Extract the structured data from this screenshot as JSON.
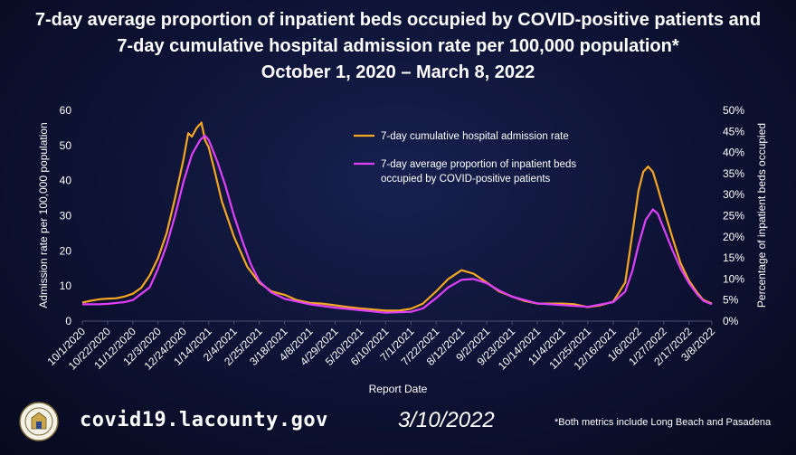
{
  "header": {
    "title_line1": "7-day average proportion of inpatient beds occupied by COVID-positive patients and",
    "title_line2": "7-day cumulative hospital admission rate per 100,000 population*",
    "title_line3": "October 1, 2020 – March 8, 2022"
  },
  "footer": {
    "url": "covid19.lacounty.gov",
    "date": "3/10/2022",
    "note": "*Both metrics include Long Beach and Pasadena",
    "seal_icon": "county-seal-icon"
  },
  "colors": {
    "admission": "#f5a623",
    "occupancy": "#e040fb",
    "background": "#0d1233"
  },
  "chart_data": {
    "type": "line",
    "xlabel": "Report Date",
    "ylabel": "Admission rate per 100,000 population",
    "y2label": "Percentage of inpatient beds occupied",
    "ylim": [
      0,
      60
    ],
    "yticks": [
      "0",
      "10",
      "20",
      "30",
      "40",
      "50",
      "60"
    ],
    "y2lim": [
      0,
      50
    ],
    "y2ticks": [
      "0%",
      "5%",
      "10%",
      "15%",
      "20%",
      "25%",
      "30%",
      "35%",
      "40%",
      "45%",
      "50%"
    ],
    "x_ticks": [
      "10/1/2020",
      "10/22/2020",
      "11/12/2020",
      "12/3/2020",
      "12/24/2020",
      "1/14/2021",
      "2/4/2021",
      "2/25/2021",
      "3/18/2021",
      "4/8/2021",
      "4/29/2021",
      "5/20/2021",
      "6/10/2021",
      "7/1/2021",
      "7/22/2021",
      "8/12/2021",
      "9/2/2021",
      "9/23/2021",
      "10/14/2021",
      "11/4/2021",
      "11/25/2021",
      "12/16/2021",
      "1/6/2022",
      "1/27/2022",
      "2/17/2022",
      "3/8/2022"
    ],
    "x_range": [
      "10/1/2020",
      "3/8/2022"
    ],
    "grid": false,
    "legend_position": "top-center",
    "series": [
      {
        "name": "7-day cumulative hospital admission rate",
        "axis": "left",
        "points": [
          [
            "10/1/2020",
            5.3
          ],
          [
            "10/8/2020",
            5.8
          ],
          [
            "10/15/2020",
            6.2
          ],
          [
            "10/22/2020",
            6.4
          ],
          [
            "10/29/2020",
            6.5
          ],
          [
            "11/5/2020",
            7.0
          ],
          [
            "11/12/2020",
            7.8
          ],
          [
            "11/19/2020",
            9.5
          ],
          [
            "11/26/2020",
            13.0
          ],
          [
            "12/3/2020",
            18.0
          ],
          [
            "12/10/2020",
            25.0
          ],
          [
            "12/17/2020",
            35.0
          ],
          [
            "12/24/2020",
            46.0
          ],
          [
            "12/28/2020",
            53.5
          ],
          [
            "12/31/2020",
            52.5
          ],
          [
            "1/4/2021",
            55.0
          ],
          [
            "1/8/2021",
            56.5
          ],
          [
            "1/11/2021",
            51.5
          ],
          [
            "1/14/2021",
            49.5
          ],
          [
            "1/18/2021",
            44.0
          ],
          [
            "1/25/2021",
            34.0
          ],
          [
            "2/4/2021",
            24.0
          ],
          [
            "2/15/2021",
            15.5
          ],
          [
            "2/25/2021",
            11.0
          ],
          [
            "3/7/2021",
            8.5
          ],
          [
            "3/18/2021",
            7.5
          ],
          [
            "3/28/2021",
            6.0
          ],
          [
            "4/8/2021",
            5.2
          ],
          [
            "4/18/2021",
            5.0
          ],
          [
            "4/29/2021",
            4.5
          ],
          [
            "5/10/2021",
            4.0
          ],
          [
            "5/20/2021",
            3.6
          ],
          [
            "5/31/2021",
            3.3
          ],
          [
            "6/10/2021",
            3.0
          ],
          [
            "6/21/2021",
            3.0
          ],
          [
            "7/1/2021",
            3.5
          ],
          [
            "7/11/2021",
            5.0
          ],
          [
            "7/22/2021",
            8.5
          ],
          [
            "8/1/2021",
            12.0
          ],
          [
            "8/12/2021",
            14.5
          ],
          [
            "8/22/2021",
            13.5
          ],
          [
            "9/2/2021",
            11.0
          ],
          [
            "9/12/2021",
            8.5
          ],
          [
            "9/23/2021",
            7.0
          ],
          [
            "10/3/2021",
            5.8
          ],
          [
            "10/14/2021",
            5.0
          ],
          [
            "10/24/2021",
            5.0
          ],
          [
            "11/4/2021",
            5.0
          ],
          [
            "11/14/2021",
            4.8
          ],
          [
            "11/25/2021",
            4.0
          ],
          [
            "12/5/2021",
            4.5
          ],
          [
            "12/16/2021",
            5.5
          ],
          [
            "12/26/2021",
            11.0
          ],
          [
            "1/1/2022",
            25.0
          ],
          [
            "1/6/2022",
            37.0
          ],
          [
            "1/10/2022",
            42.5
          ],
          [
            "1/14/2022",
            44.0
          ],
          [
            "1/18/2022",
            42.5
          ],
          [
            "1/22/2022",
            38.0
          ],
          [
            "1/27/2022",
            32.0
          ],
          [
            "2/3/2022",
            24.0
          ],
          [
            "2/10/2022",
            16.5
          ],
          [
            "2/17/2022",
            11.5
          ],
          [
            "2/24/2022",
            8.0
          ],
          [
            "3/1/2022",
            6.0
          ],
          [
            "3/8/2022",
            5.0
          ]
        ]
      },
      {
        "name": "7-day average proportion of inpatient beds occupied by COVID-positive patients",
        "axis": "right",
        "points": [
          [
            "10/1/2020",
            4.0
          ],
          [
            "10/15/2020",
            4.0
          ],
          [
            "10/22/2020",
            4.1
          ],
          [
            "11/5/2020",
            4.5
          ],
          [
            "11/12/2020",
            5.0
          ],
          [
            "11/26/2020",
            8.0
          ],
          [
            "12/3/2020",
            12.5
          ],
          [
            "12/10/2020",
            18.0
          ],
          [
            "12/17/2020",
            25.0
          ],
          [
            "12/24/2020",
            33.0
          ],
          [
            "12/31/2020",
            39.5
          ],
          [
            "1/7/2021",
            43.0
          ],
          [
            "1/11/2021",
            44.0
          ],
          [
            "1/14/2021",
            43.0
          ],
          [
            "1/21/2021",
            38.0
          ],
          [
            "1/28/2021",
            32.0
          ],
          [
            "2/4/2021",
            25.0
          ],
          [
            "2/11/2021",
            19.0
          ],
          [
            "2/18/2021",
            13.5
          ],
          [
            "2/25/2021",
            9.5
          ],
          [
            "3/7/2021",
            6.8
          ],
          [
            "3/18/2021",
            5.3
          ],
          [
            "4/8/2021",
            4.0
          ],
          [
            "4/29/2021",
            3.2
          ],
          [
            "5/20/2021",
            2.6
          ],
          [
            "6/10/2021",
            2.0
          ],
          [
            "7/1/2021",
            2.2
          ],
          [
            "7/11/2021",
            3.0
          ],
          [
            "7/22/2021",
            5.5
          ],
          [
            "8/1/2021",
            8.0
          ],
          [
            "8/12/2021",
            9.8
          ],
          [
            "8/22/2021",
            10.0
          ],
          [
            "9/2/2021",
            9.0
          ],
          [
            "9/12/2021",
            7.3
          ],
          [
            "9/23/2021",
            5.8
          ],
          [
            "10/14/2021",
            4.2
          ],
          [
            "11/4/2021",
            3.8
          ],
          [
            "11/25/2021",
            3.4
          ],
          [
            "12/16/2021",
            4.5
          ],
          [
            "12/26/2021",
            7.0
          ],
          [
            "1/1/2022",
            12.0
          ],
          [
            "1/6/2022",
            18.0
          ],
          [
            "1/12/2022",
            24.0
          ],
          [
            "1/18/2022",
            26.5
          ],
          [
            "1/22/2022",
            25.5
          ],
          [
            "1/27/2022",
            22.0
          ],
          [
            "2/3/2022",
            17.0
          ],
          [
            "2/10/2022",
            12.5
          ],
          [
            "2/17/2022",
            9.0
          ],
          [
            "2/24/2022",
            6.3
          ],
          [
            "3/1/2022",
            4.8
          ],
          [
            "3/8/2022",
            4.0
          ]
        ]
      }
    ]
  }
}
